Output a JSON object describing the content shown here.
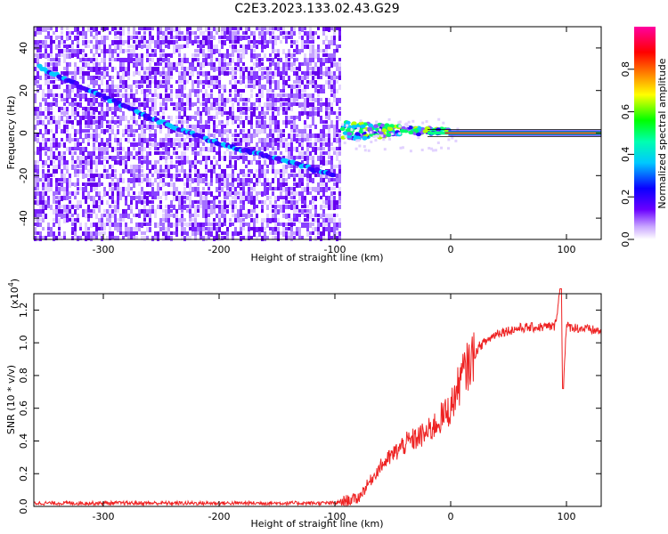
{
  "title": "C2E3.2023.133.02.43.G29",
  "chart_data": [
    {
      "type": "heatmap",
      "xlabel": "Height of straight line (km)",
      "ylabel": "Frequency (Hz)",
      "xlim": [
        -360,
        130
      ],
      "ylim": [
        -50,
        50
      ],
      "xticks": [
        -300,
        -200,
        -100,
        0,
        100
      ],
      "yticks": [
        -40,
        -20,
        0,
        20,
        40
      ],
      "noise_region_x": [
        -360,
        -95
      ],
      "signal_track": [
        {
          "x": -355,
          "y": 31
        },
        {
          "x": -300,
          "y": 17
        },
        {
          "x": -250,
          "y": 5
        },
        {
          "x": -200,
          "y": -5
        },
        {
          "x": -150,
          "y": -12
        },
        {
          "x": -100,
          "y": -20
        }
      ],
      "signal_cluster": {
        "x": [
          -95,
          0
        ],
        "y": 1
      },
      "carrier_line": {
        "x": [
          -20,
          130
        ],
        "y": 0
      },
      "colorbar": {
        "label": "Normalized spectral amplitude",
        "range": [
          0.0,
          1.0
        ],
        "ticks": [
          0.0,
          0.2,
          0.4,
          0.6,
          0.8
        ]
      }
    },
    {
      "type": "line",
      "xlabel": "Height of straight line (km)",
      "ylabel": "SNR (10 * v/v)",
      "scale_label": "(x10",
      "scale_exp": "4",
      "scale_close": ")",
      "xlim": [
        -360,
        130
      ],
      "ylim": [
        0,
        1.3
      ],
      "xticks": [
        -300,
        -200,
        -100,
        0,
        100
      ],
      "yticks": [
        0.0,
        0.2,
        0.4,
        0.6,
        0.8,
        1.0,
        1.2
      ],
      "series": [
        {
          "color": "#ee2222",
          "points": [
            {
              "x": -360,
              "y": 0.02
            },
            {
              "x": -100,
              "y": 0.02
            },
            {
              "x": -80,
              "y": 0.05
            },
            {
              "x": -60,
              "y": 0.25
            },
            {
              "x": -40,
              "y": 0.38
            },
            {
              "x": -20,
              "y": 0.45
            },
            {
              "x": 0,
              "y": 0.6
            },
            {
              "x": 10,
              "y": 0.8
            },
            {
              "x": 25,
              "y": 0.98
            },
            {
              "x": 40,
              "y": 1.06
            },
            {
              "x": 60,
              "y": 1.09
            },
            {
              "x": 90,
              "y": 1.1
            },
            {
              "x": 95,
              "y": 1.35
            },
            {
              "x": 97,
              "y": 0.72
            },
            {
              "x": 100,
              "y": 1.1
            },
            {
              "x": 130,
              "y": 1.07
            }
          ]
        }
      ]
    }
  ]
}
